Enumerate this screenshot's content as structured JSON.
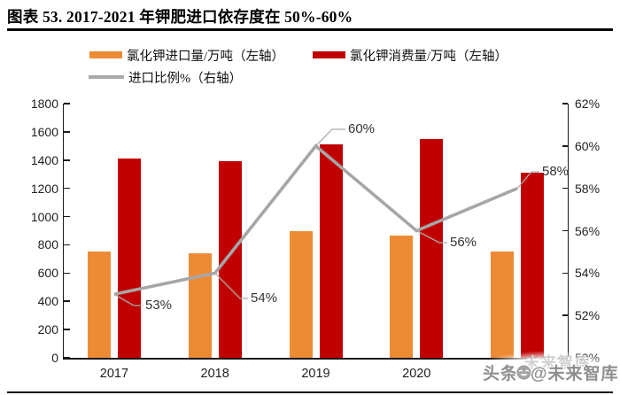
{
  "figure": {
    "title": "图表 53. 2017-2021 年钾肥进口依存度在 50%-60%"
  },
  "legend": [
    {
      "label": "氯化钾进口量/万吨（左轴）",
      "color": "#ED8B35",
      "type": "bar"
    },
    {
      "label": "氯化钾消费量/万吨（左轴）",
      "color": "#C00000",
      "type": "bar"
    },
    {
      "label": "进口比例%（右轴）",
      "color": "#ABABAB",
      "type": "line"
    }
  ],
  "watermark": {
    "prefix": "头条",
    "suffix": "@未来智库",
    "echo": "未来智库"
  },
  "chart_data": {
    "type": "bar+line",
    "title": "2017-2021 年钾肥进口依存度在 50%-60%",
    "categories": [
      "2017",
      "2018",
      "2019",
      "2020",
      "2021"
    ],
    "series": [
      {
        "name": "氯化钾进口量/万吨",
        "type": "bar",
        "axis": "left",
        "color": "#ED8B35",
        "values": [
          750,
          740,
          900,
          865,
          755
        ]
      },
      {
        "name": "氯化钾消费量/万吨",
        "type": "bar",
        "axis": "left",
        "color": "#C00000",
        "values": [
          1410,
          1390,
          1510,
          1550,
          1310
        ]
      },
      {
        "name": "进口比例%",
        "type": "line",
        "axis": "right",
        "color": "#A6A6A6",
        "values": [
          53,
          54,
          60,
          56,
          58
        ],
        "point_labels": [
          "53%",
          "54%",
          "60%",
          "56%",
          "58%"
        ]
      }
    ],
    "left_axis": {
      "min": 0,
      "max": 1800,
      "step": 200,
      "ticks": [
        "0",
        "200",
        "400",
        "600",
        "800",
        "1000",
        "1200",
        "1400",
        "1600",
        "1800"
      ]
    },
    "right_axis": {
      "min": 50,
      "max": 62,
      "step": 2,
      "ticks": [
        "50%",
        "52%",
        "54%",
        "56%",
        "58%",
        "60%",
        "62%"
      ]
    },
    "grid": false,
    "legend_position": "top"
  }
}
